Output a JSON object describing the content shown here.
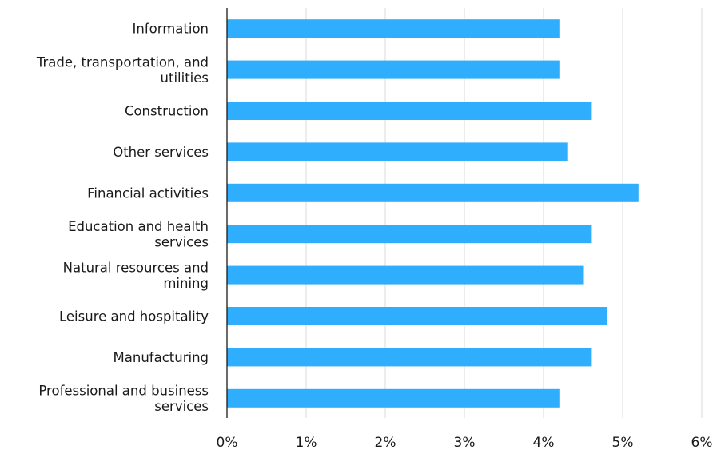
{
  "chart_data": {
    "type": "bar",
    "orientation": "horizontal",
    "categories": [
      [
        "Information"
      ],
      [
        "Trade, transportation, and",
        "utilities"
      ],
      [
        "Construction"
      ],
      [
        "Other services"
      ],
      [
        "Financial activities"
      ],
      [
        "Education and health",
        "services"
      ],
      [
        "Natural resources and",
        "mining"
      ],
      [
        "Leisure and hospitality"
      ],
      [
        "Manufacturing"
      ],
      [
        "Professional and business",
        "services"
      ]
    ],
    "values": [
      4.2,
      4.2,
      4.6,
      4.3,
      5.2,
      4.6,
      4.5,
      4.8,
      4.6,
      4.2
    ],
    "xlim": [
      0,
      6
    ],
    "xticks": [
      0,
      1,
      2,
      3,
      4,
      5,
      6
    ],
    "tick_suffix": "%",
    "grid": true,
    "legend": "none",
    "title": "",
    "xlabel": "",
    "ylabel": "",
    "bar_color": "#2eaefc",
    "grid_color": "#e3e3e3",
    "axis_color": "#1a1a1a"
  }
}
